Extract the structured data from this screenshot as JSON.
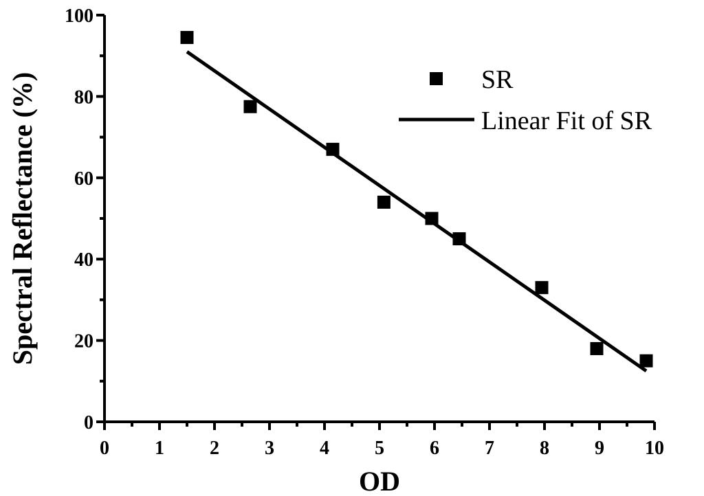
{
  "chart_data": {
    "type": "scatter",
    "xlabel": "OD",
    "ylabel": "Spectral Reflectance (%)",
    "xlim": [
      0,
      10
    ],
    "ylim": [
      0,
      100
    ],
    "x_ticks": [
      0,
      1,
      2,
      3,
      4,
      5,
      6,
      7,
      8,
      9,
      10
    ],
    "y_ticks": [
      0,
      20,
      40,
      60,
      80,
      100
    ],
    "grid": false,
    "legend_position": "top-right",
    "series": [
      {
        "name": "SR",
        "kind": "scatter",
        "marker": "square",
        "color": "#000000",
        "x": [
          1.5,
          2.65,
          4.15,
          5.08,
          5.95,
          6.45,
          7.95,
          8.95,
          9.85
        ],
        "y": [
          94.5,
          77.5,
          67,
          54,
          50,
          45,
          33,
          18,
          15
        ]
      },
      {
        "name": "Linear Fit of SR",
        "kind": "line",
        "color": "#000000",
        "x": [
          1.5,
          9.85
        ],
        "y": [
          91,
          12.5
        ]
      }
    ]
  }
}
